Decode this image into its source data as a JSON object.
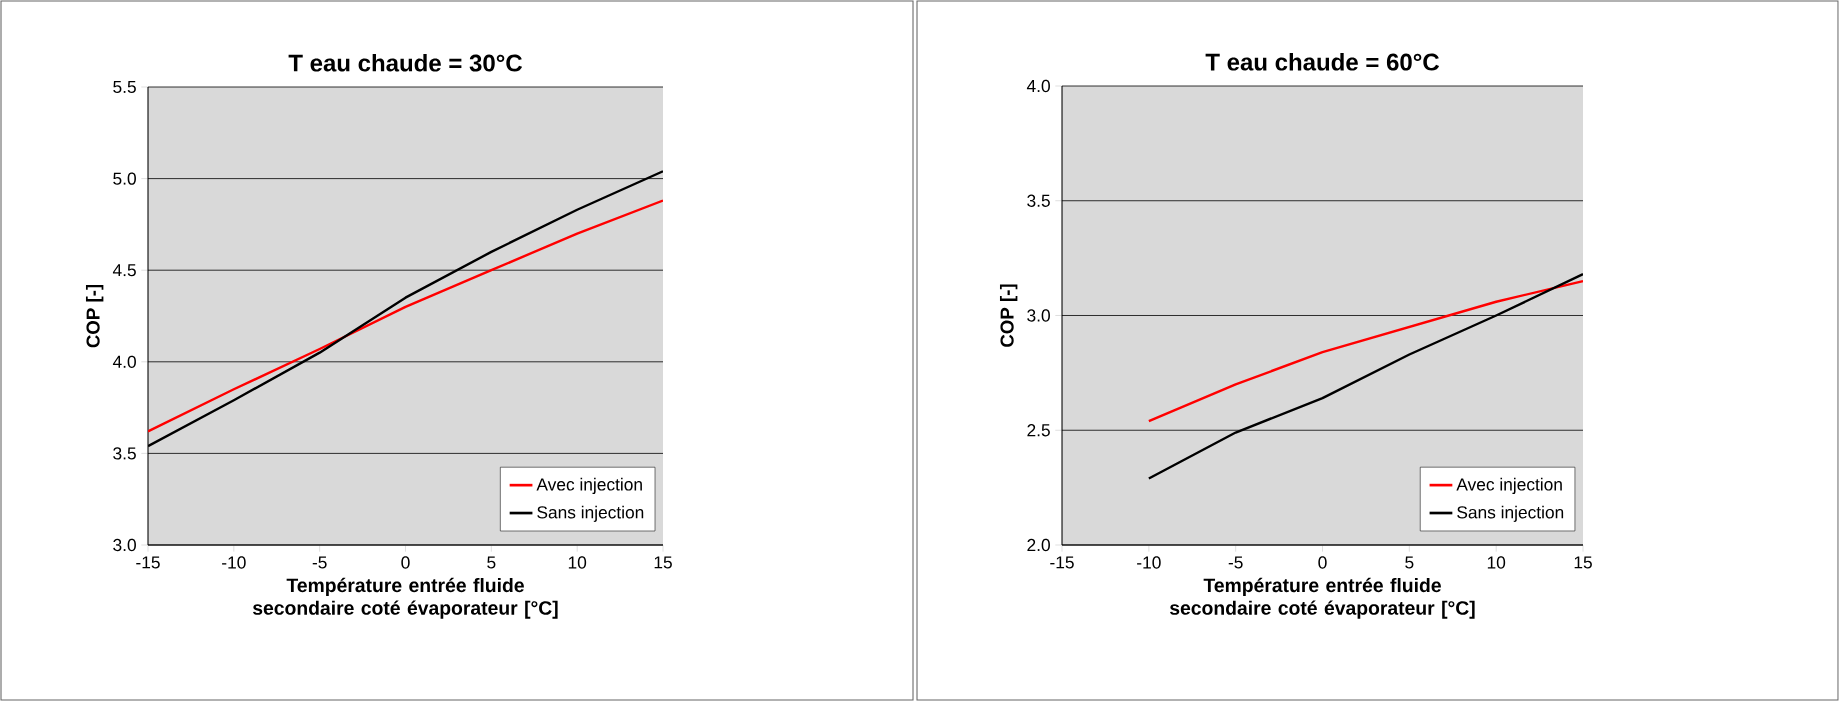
{
  "chart_data": [
    {
      "type": "line",
      "title": "T eau chaude = 30°C",
      "xlabel": "Température entrée fluide secondaire coté évaporateur [°C]",
      "ylabel": "COP [-]",
      "x": [
        -15,
        -10,
        -5,
        0,
        5,
        10,
        15
      ],
      "series": [
        {
          "name": "Avec injection",
          "color": "#ff0000",
          "values": [
            3.62,
            3.85,
            4.07,
            4.3,
            4.5,
            4.7,
            4.88
          ]
        },
        {
          "name": "Sans injection",
          "color": "#000000",
          "values": [
            3.54,
            3.79,
            4.05,
            4.35,
            4.6,
            4.83,
            5.04
          ]
        }
      ],
      "xlim": [
        -15,
        15
      ],
      "xticks": [
        -15,
        -10,
        -5,
        0,
        5,
        10,
        15
      ],
      "ylim": [
        3,
        5.5
      ],
      "yticks": [
        {
          "value": 3,
          "label": "3.0"
        },
        3.5,
        {
          "value": 4,
          "label": "4.0"
        },
        4.5,
        {
          "value": 5,
          "label": "5.0"
        },
        5.5
      ],
      "grid": "y",
      "legend": "bottom right"
    },
    {
      "type": "line",
      "title": "T eau chaude = 60°C",
      "xlabel": "Température entrée fluide secondaire coté évaporateur [°C]",
      "ylabel": "COP [-]",
      "x": [
        -10,
        -5,
        0,
        5,
        10,
        15
      ],
      "series": [
        {
          "name": "Avec injection",
          "color": "#ff0000",
          "values": [
            2.54,
            2.7,
            2.84,
            2.95,
            3.06,
            3.15
          ]
        },
        {
          "name": "Sans injection",
          "color": "#000000",
          "values": [
            2.29,
            2.49,
            2.64,
            2.83,
            3.0,
            3.18
          ]
        }
      ],
      "xlim": [
        -15,
        15
      ],
      "xticks": [
        -15,
        -10,
        -5,
        0,
        5,
        10,
        15
      ],
      "ylim": [
        2,
        4
      ],
      "yticks": [
        {
          "value": 2,
          "label": "2.0"
        },
        2.5,
        {
          "value": 3,
          "label": "3.0"
        },
        3.5,
        {
          "value": 4,
          "label": "4.0"
        }
      ],
      "grid": "y",
      "legend": "bottom right"
    }
  ]
}
